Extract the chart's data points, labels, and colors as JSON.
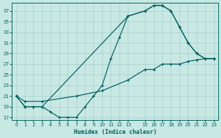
{
  "xlabel": "Humidex (Indice chaleur)",
  "bg_color": "#c8e8e4",
  "grid_color": "#a8ccc8",
  "line_color": "#006060",
  "xlim": [
    -0.5,
    23.5
  ],
  "ylim": [
    16.5,
    38.5
  ],
  "xticks": [
    0,
    1,
    2,
    3,
    4,
    5,
    6,
    7,
    8,
    9,
    10,
    11,
    12,
    13,
    15,
    16,
    17,
    18,
    19,
    20,
    21,
    22,
    23
  ],
  "yticks": [
    17,
    19,
    21,
    23,
    25,
    27,
    29,
    31,
    33,
    35,
    37
  ],
  "line1_x": [
    0,
    1,
    2,
    3,
    4,
    5,
    6,
    7,
    8,
    9,
    10,
    11,
    12,
    13,
    15,
    16,
    17,
    18,
    19,
    20,
    21,
    22,
    23
  ],
  "line1_y": [
    21,
    19,
    19,
    19,
    18,
    17,
    17,
    17,
    19,
    21,
    23,
    28,
    32,
    36,
    37,
    38,
    38,
    37,
    34,
    31,
    29,
    28,
    28
  ],
  "line2_x": [
    0,
    1,
    3,
    7,
    10,
    13,
    15,
    16,
    17,
    18,
    19,
    20,
    21,
    22,
    23
  ],
  "line2_y": [
    21,
    20,
    20,
    21,
    22,
    24,
    26,
    26,
    27,
    27,
    27,
    27.5,
    27.8,
    28,
    28
  ],
  "line3_x": [
    0,
    1,
    2,
    3,
    13,
    15,
    16,
    17,
    18,
    19,
    20,
    21,
    22,
    23
  ],
  "line3_y": [
    21,
    19,
    19,
    19,
    36,
    37,
    38,
    38,
    37,
    34,
    31,
    29,
    28,
    28
  ]
}
